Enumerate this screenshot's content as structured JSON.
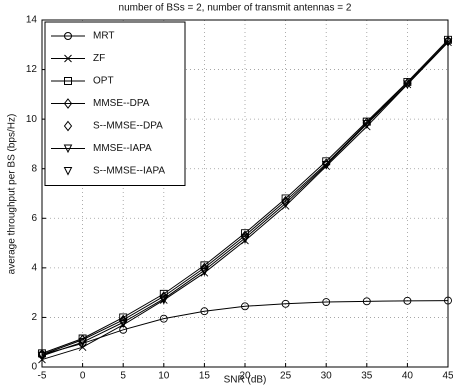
{
  "chart_data": {
    "type": "line",
    "title": "number of BSs = 2, number of transmit antennas = 2",
    "x_label": "SNR (dB)",
    "y_label": "average throughput per BS (bps/Hz)",
    "x": [
      -5,
      0,
      5,
      10,
      15,
      20,
      25,
      30,
      35,
      40,
      45
    ],
    "series": [
      {
        "name": "MRT",
        "color": "#000000",
        "marker": "circle",
        "line": true,
        "values": [
          0.5,
          0.95,
          1.5,
          1.95,
          2.25,
          2.45,
          2.55,
          2.62,
          2.65,
          2.67,
          2.68
        ]
      },
      {
        "name": "ZF",
        "color": "#000000",
        "marker": "x",
        "line": true,
        "values": [
          0.3,
          0.8,
          1.7,
          2.7,
          3.8,
          5.1,
          6.5,
          8.1,
          9.7,
          11.4,
          13.1
        ]
      },
      {
        "name": "OPT",
        "color": "#000000",
        "marker": "square",
        "line": true,
        "values": [
          0.55,
          1.15,
          2.0,
          2.95,
          4.1,
          5.4,
          6.8,
          8.3,
          9.9,
          11.5,
          13.2
        ]
      },
      {
        "name": "MMSE--DPA",
        "color": "#000000",
        "marker": "diamond",
        "line": true,
        "values": [
          0.5,
          1.1,
          1.9,
          2.85,
          4.0,
          5.3,
          6.7,
          8.2,
          9.85,
          11.45,
          13.15
        ]
      },
      {
        "name": "S--MMSE--DPA",
        "color": "#000000",
        "marker": "diamond",
        "line": false,
        "values": [
          0.5,
          1.1,
          1.85,
          2.8,
          3.95,
          5.25,
          6.65,
          8.2,
          9.85,
          11.45,
          13.15
        ]
      },
      {
        "name": "MMSE--IAPA",
        "color": "#000000",
        "marker": "triangle-down",
        "line": true,
        "values": [
          0.45,
          1.0,
          1.8,
          2.75,
          3.9,
          5.2,
          6.6,
          8.15,
          9.8,
          11.4,
          13.1
        ]
      },
      {
        "name": "S--MMSE--IAPA",
        "color": "#000000",
        "marker": "triangle-down",
        "line": false,
        "values": [
          0.45,
          1.0,
          1.75,
          2.7,
          3.85,
          5.15,
          6.6,
          8.15,
          9.8,
          11.4,
          13.1
        ]
      }
    ],
    "xlim": [
      -5,
      45
    ],
    "xticks": [
      -5,
      0,
      5,
      10,
      15,
      20,
      25,
      30,
      35,
      40,
      45
    ],
    "ylim": [
      0,
      14
    ],
    "yticks": [
      0,
      2,
      4,
      6,
      8,
      10,
      12,
      14
    ],
    "grid": true,
    "legend": "upper-left"
  }
}
